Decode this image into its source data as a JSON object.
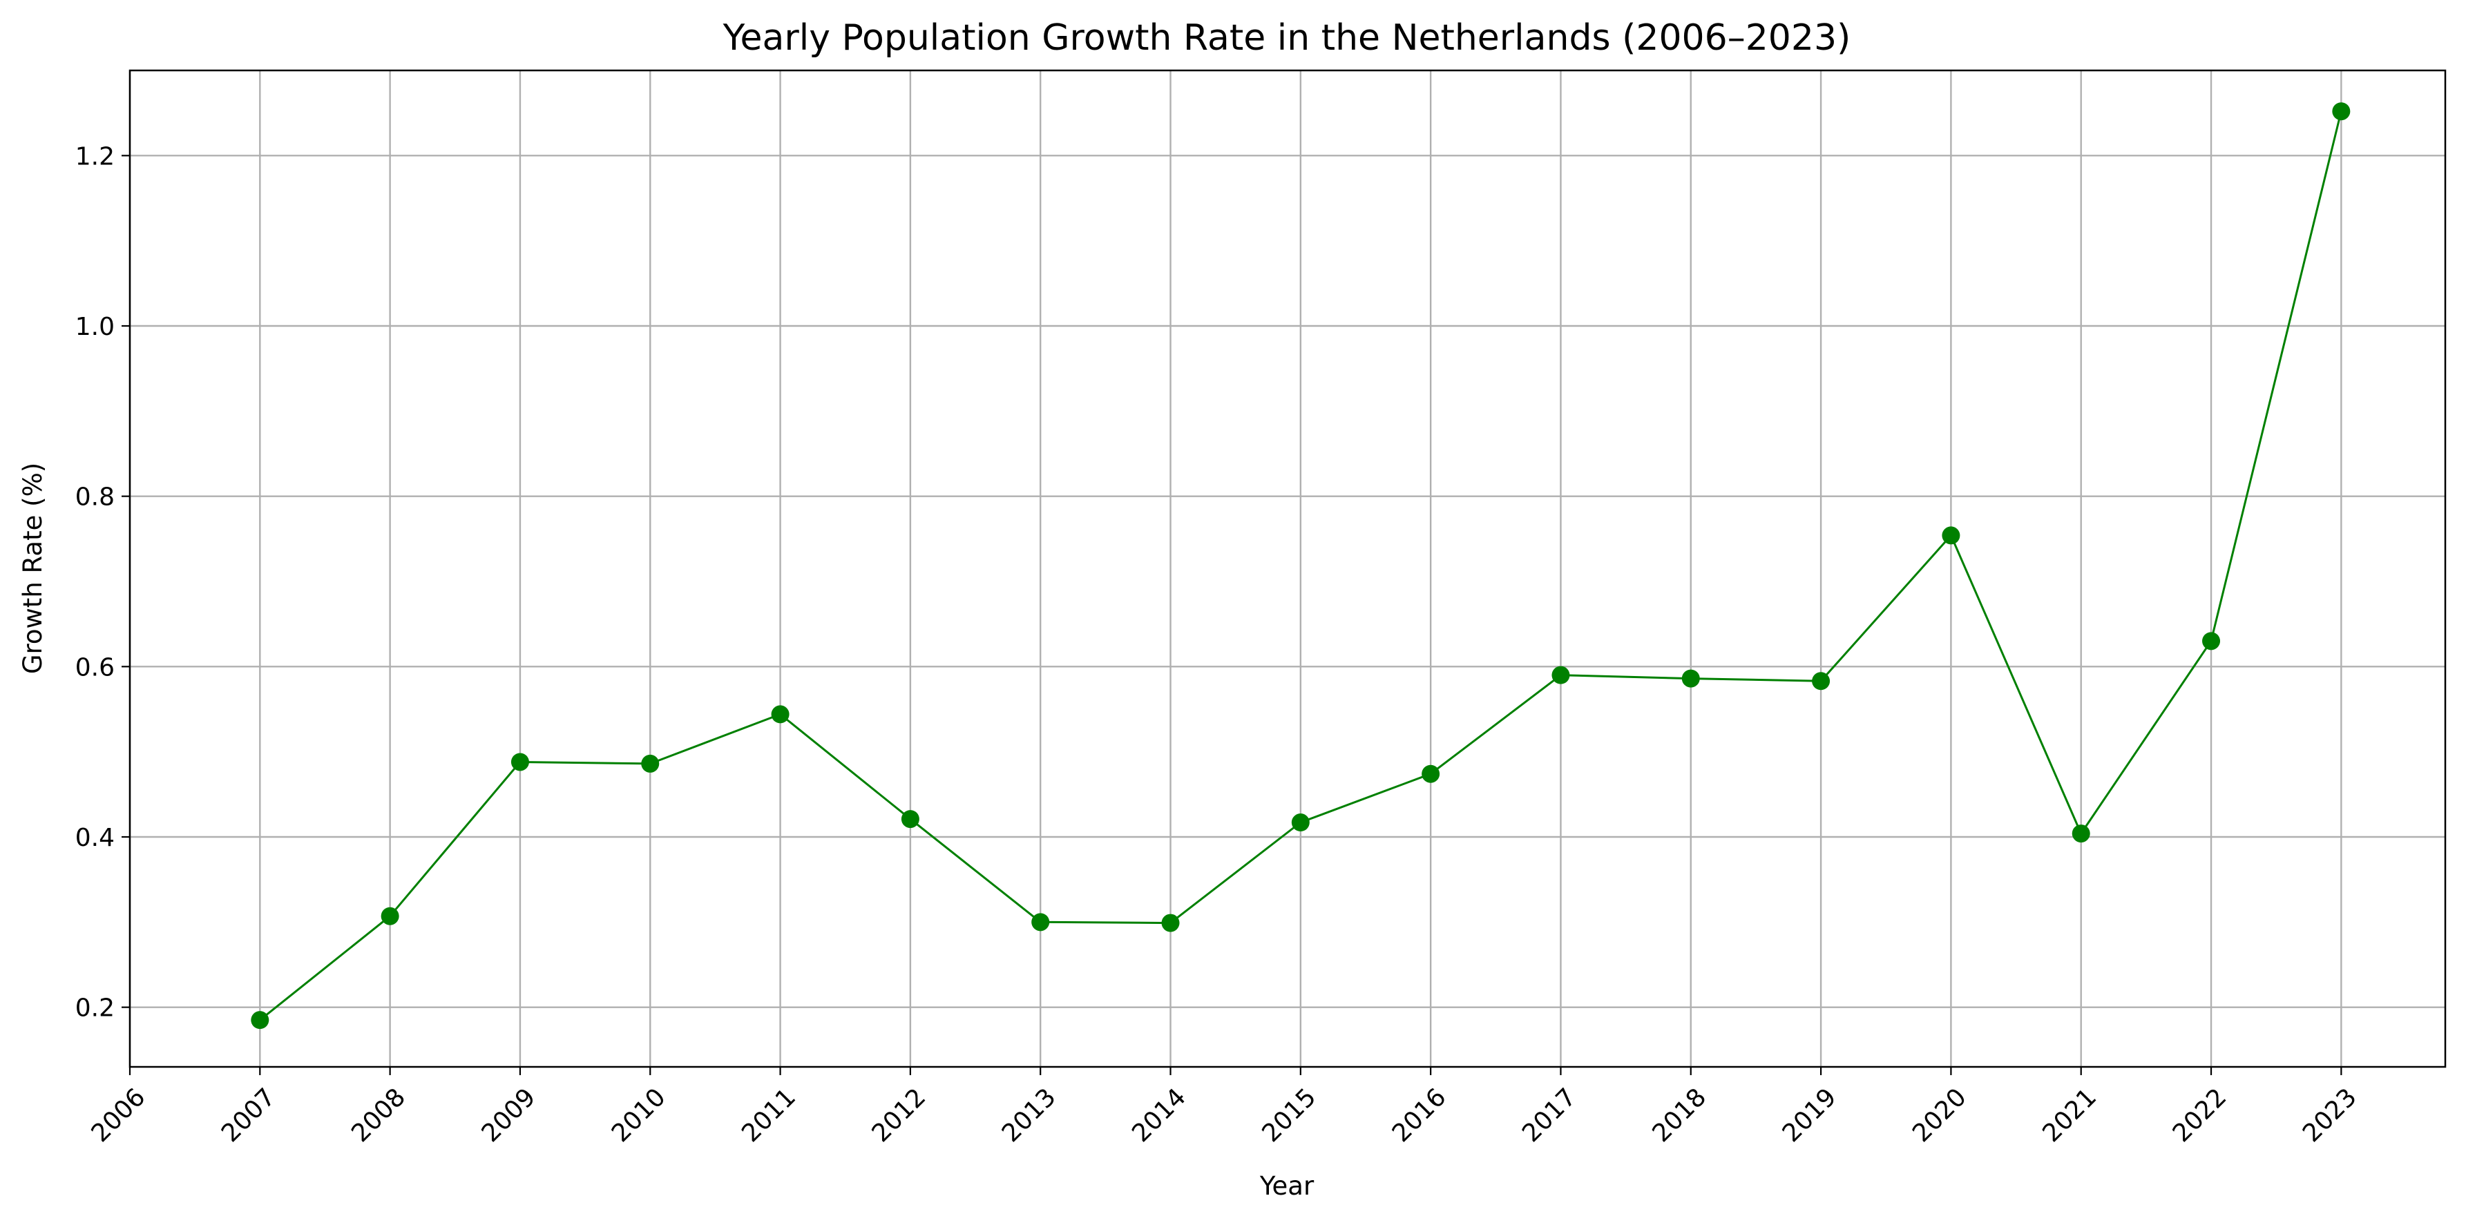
{
  "chart_data": {
    "type": "line",
    "title": "Yearly Population Growth Rate in the Netherlands (2006–2023)",
    "xlabel": "Year",
    "ylabel": "Growth Rate (%)",
    "x_ticks": [
      "2006",
      "2007",
      "2008",
      "2009",
      "2010",
      "2011",
      "2012",
      "2013",
      "2014",
      "2015",
      "2016",
      "2017",
      "2018",
      "2019",
      "2020",
      "2021",
      "2022",
      "2023"
    ],
    "y_ticks": [
      "0.2",
      "0.4",
      "0.6",
      "0.8",
      "1.0",
      "1.2"
    ],
    "xlim": [
      2006,
      2023.8
    ],
    "ylim": [
      0.13,
      1.3
    ],
    "grid": true,
    "series": [
      {
        "color": "#008000",
        "marker": "circle",
        "x": [
          2007,
          2008,
          2009,
          2010,
          2011,
          2012,
          2013,
          2014,
          2015,
          2016,
          2017,
          2018,
          2019,
          2020,
          2021,
          2022,
          2023
        ],
        "values": [
          0.185,
          0.307,
          0.488,
          0.486,
          0.544,
          0.421,
          0.3,
          0.299,
          0.417,
          0.474,
          0.59,
          0.586,
          0.583,
          0.754,
          0.404,
          0.63,
          1.252
        ]
      }
    ]
  }
}
